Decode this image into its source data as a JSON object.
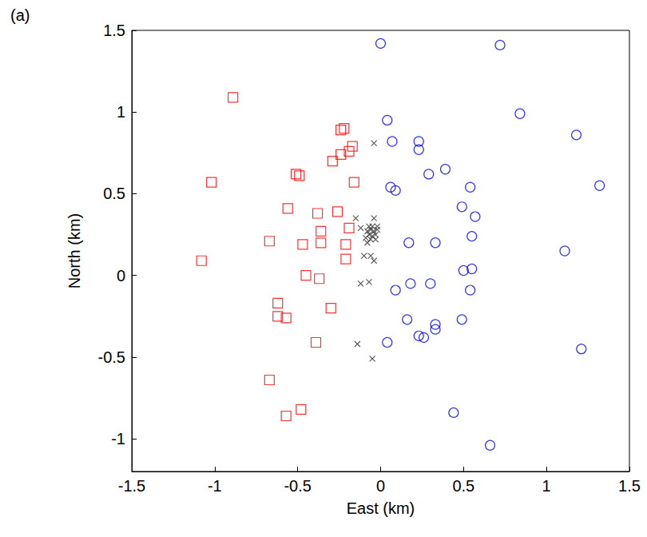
{
  "chart_data": {
    "type": "scatter",
    "title": "(a)",
    "x_label": "East (km)",
    "y_label": "North (km)",
    "xlim": [
      -1.5,
      1.5
    ],
    "xticks": [
      -1.5,
      -1,
      -0.5,
      0,
      0.5,
      1,
      1.5
    ],
    "ylim": [
      -1.2,
      1.5
    ],
    "yticks": [
      -1,
      -0.5,
      0,
      0.5,
      1,
      1.5
    ],
    "grid": false,
    "series": [
      {
        "color": "#ff0000",
        "marker": "square",
        "x": [
          -0.89,
          -1.02,
          -1.08,
          -0.51,
          -0.49,
          -0.24,
          -0.22,
          -0.24,
          -0.19,
          -0.17,
          -0.29,
          -0.16,
          -0.56,
          -0.38,
          -0.26,
          -0.36,
          -0.36,
          -0.47,
          -0.21,
          -0.19,
          -0.21,
          -0.67,
          -0.62,
          -0.62,
          -0.57,
          -0.45,
          -0.3,
          -0.39,
          -0.67,
          -0.57,
          -0.48,
          -0.37
        ],
        "y": [
          1.09,
          0.57,
          0.09,
          0.62,
          0.61,
          0.89,
          0.9,
          0.74,
          0.76,
          0.79,
          0.7,
          0.57,
          0.41,
          0.38,
          0.39,
          0.27,
          0.2,
          0.19,
          0.19,
          0.29,
          0.1,
          0.21,
          -0.17,
          -0.25,
          -0.26,
          0.0,
          -0.2,
          -0.41,
          -0.64,
          -0.86,
          -0.82,
          -0.02
        ]
      },
      {
        "color": "#0000ff",
        "marker": "circle",
        "x": [
          0.0,
          0.72,
          0.04,
          0.84,
          1.18,
          0.07,
          0.23,
          0.23,
          0.06,
          0.09,
          0.29,
          0.39,
          0.54,
          1.32,
          0.49,
          0.57,
          0.55,
          0.33,
          0.17,
          1.11,
          0.5,
          0.54,
          0.09,
          0.18,
          0.3,
          0.16,
          0.23,
          0.26,
          0.33,
          0.33,
          0.49,
          0.04,
          1.21,
          0.44,
          0.66,
          0.55
        ],
        "y": [
          1.42,
          1.41,
          0.95,
          0.99,
          0.86,
          0.82,
          0.82,
          0.77,
          0.54,
          0.52,
          0.62,
          0.65,
          0.54,
          0.55,
          0.42,
          0.36,
          0.24,
          0.2,
          0.2,
          0.15,
          0.03,
          -0.09,
          -0.09,
          -0.05,
          -0.05,
          -0.27,
          -0.37,
          -0.38,
          -0.3,
          -0.33,
          -0.27,
          -0.41,
          -0.45,
          -0.84,
          -1.04,
          0.04
        ]
      },
      {
        "color": "#333333",
        "marker": "x",
        "x": [
          -0.04,
          -0.15,
          -0.04,
          -0.02,
          -0.1,
          -0.06,
          -0.04,
          -0.12,
          -0.07,
          -0.14,
          -0.05,
          -0.12,
          -0.08,
          -0.08,
          -0.07,
          -0.06,
          -0.05,
          -0.04,
          -0.03,
          -0.06,
          -0.02,
          -0.09,
          -0.05,
          -0.03,
          -0.07
        ],
        "y": [
          0.81,
          0.35,
          0.35,
          0.3,
          0.12,
          0.12,
          0.09,
          -0.05,
          -0.04,
          -0.42,
          -0.51,
          0.29,
          0.2,
          0.27,
          0.25,
          0.28,
          0.24,
          0.27,
          0.25,
          0.22,
          0.28,
          0.23,
          0.3,
          0.22,
          0.3
        ]
      }
    ]
  }
}
